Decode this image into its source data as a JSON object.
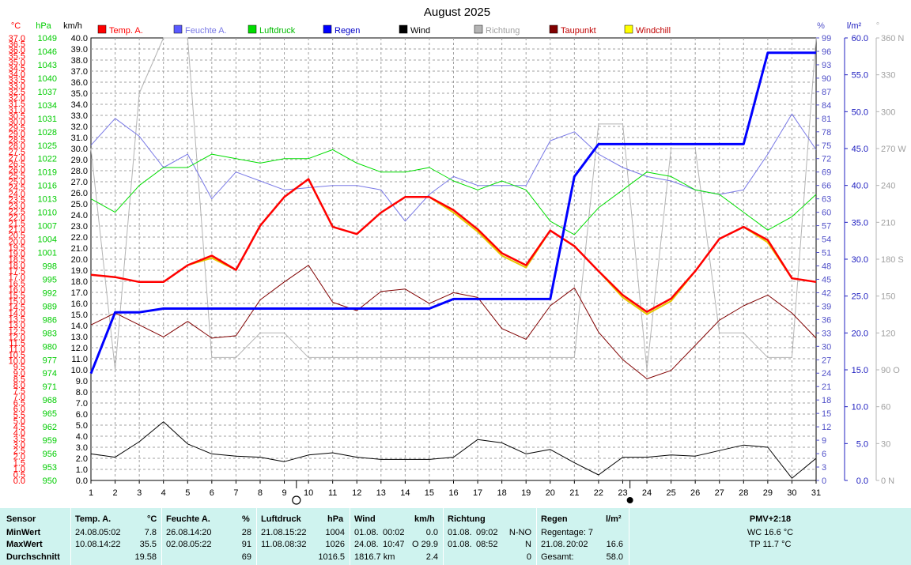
{
  "chart_data": {
    "type": "line",
    "title": "August 2025",
    "x": [
      1,
      2,
      3,
      4,
      5,
      6,
      7,
      8,
      9,
      10,
      11,
      12,
      13,
      14,
      15,
      16,
      17,
      18,
      19,
      20,
      21,
      22,
      23,
      24,
      25,
      26,
      27,
      28,
      29,
      30,
      31
    ],
    "moon_new_day": 9.5,
    "moon_full_day": 23.3,
    "grid": true,
    "legend_position": "top",
    "axes": {
      "temp": {
        "unit": "°C",
        "color": "#ff0000",
        "range": [
          0,
          37
        ],
        "step": 0.5
      },
      "pressure": {
        "unit": "hPa",
        "color": "#00cc00",
        "range": [
          950,
          1049
        ],
        "step": 3
      },
      "wind": {
        "unit": "km/h",
        "color": "#000000",
        "range": [
          0,
          40
        ],
        "step": 1
      },
      "humidity": {
        "unit": "%",
        "color": "#5050c8",
        "range": [
          0,
          99
        ],
        "step": 3
      },
      "rain": {
        "unit": "l/m²",
        "color": "#2020c0",
        "range": [
          0,
          60
        ],
        "step": 5
      },
      "direction": {
        "unit": "°",
        "color": "#b4b4b4",
        "range": [
          0,
          360
        ],
        "step": 30
      }
    },
    "direction_labels": [
      "0 N",
      "30",
      "60",
      "90 O",
      "120",
      "150",
      "180 S",
      "210",
      "240",
      "270 W",
      "300",
      "330",
      "360 N"
    ],
    "series": [
      {
        "name": "Temp. A.",
        "axis": "temp",
        "color": "#ff0000",
        "width": 2.5,
        "values": [
          17.2,
          17.0,
          16.6,
          16.6,
          18.0,
          18.8,
          17.6,
          21.3,
          23.7,
          25.2,
          21.2,
          20.6,
          22.4,
          23.7,
          23.7,
          22.6,
          21.0,
          19.0,
          18.0,
          20.9,
          19.6,
          17.5,
          15.5,
          14.1,
          15.2,
          17.5,
          20.2,
          21.2,
          20.1,
          16.9,
          16.6
        ]
      },
      {
        "name": "Windchill",
        "axis": "temp",
        "color": "#e6c800",
        "width": 2,
        "values": [
          17.2,
          17.0,
          16.6,
          16.6,
          18.0,
          18.6,
          17.6,
          21.3,
          23.7,
          25.2,
          21.2,
          20.6,
          22.4,
          23.7,
          23.7,
          22.4,
          20.8,
          18.8,
          17.8,
          20.9,
          19.6,
          17.5,
          15.3,
          13.9,
          15.0,
          17.5,
          20.2,
          21.2,
          19.9,
          16.9,
          16.6
        ]
      },
      {
        "name": "Feuchte A.",
        "axis": "humidity",
        "color": "#7878e6",
        "width": 1,
        "values": [
          75,
          81,
          77,
          70,
          73,
          63,
          69,
          67,
          65,
          65.5,
          66,
          66,
          65,
          58,
          64,
          68,
          66,
          66,
          66,
          76,
          78,
          73,
          70,
          68,
          67,
          65,
          64,
          65,
          73,
          82,
          74
        ]
      },
      {
        "name": "Luftdruck",
        "axis": "pressure",
        "color": "#00dd00",
        "width": 1,
        "values": [
          1013,
          1010,
          1016,
          1020,
          1020,
          1023,
          1022,
          1021,
          1022,
          1022,
          1024,
          1021,
          1019,
          1019,
          1020,
          1017,
          1015,
          1017,
          1015,
          1008,
          1005,
          1011,
          1015,
          1019,
          1018,
          1015,
          1014,
          1010,
          1006,
          1009,
          1014
        ]
      },
      {
        "name": "Regen",
        "axis": "rain",
        "color": "#0000ff",
        "width": 3,
        "step_after": true,
        "values": [
          14.5,
          22.8,
          22.8,
          23.3,
          23.3,
          23.3,
          23.3,
          23.3,
          23.3,
          23.3,
          23.3,
          23.3,
          23.3,
          23.3,
          23.3,
          24.6,
          24.6,
          24.6,
          24.6,
          24.6,
          41.2,
          45.6,
          45.6,
          45.6,
          45.6,
          45.6,
          45.6,
          45.6,
          58.0,
          58.0,
          58.0
        ]
      },
      {
        "name": "Wind",
        "axis": "wind",
        "color": "#000000",
        "width": 1,
        "values": [
          2.4,
          2.1,
          3.5,
          5.3,
          3.3,
          2.4,
          2.2,
          2.1,
          1.7,
          2.3,
          2.5,
          2.1,
          1.9,
          1.9,
          1.9,
          2.1,
          3.7,
          3.4,
          2.4,
          2.8,
          1.6,
          0.5,
          2.1,
          2.1,
          2.3,
          2.2,
          2.7,
          3.2,
          3.0,
          0.2,
          2.0
        ]
      },
      {
        "name": "Richtung",
        "axis": "direction",
        "color": "#b4b4b4",
        "width": 1,
        "values": [
          270,
          90,
          315,
          360,
          360,
          100,
          100,
          120,
          120,
          100,
          100,
          100,
          100,
          100,
          100,
          100,
          100,
          100,
          100,
          100,
          100,
          290,
          290,
          90,
          270,
          270,
          120,
          120,
          100,
          100,
          360
        ]
      },
      {
        "name": "Taupunkt",
        "axis": "temp",
        "color": "#800000",
        "width": 1,
        "values": [
          13.0,
          14.0,
          13.0,
          12.0,
          13.3,
          11.9,
          12.1,
          15.1,
          16.6,
          18.0,
          14.9,
          14.2,
          15.8,
          16.0,
          14.8,
          15.7,
          15.3,
          12.7,
          11.8,
          14.6,
          16.1,
          12.4,
          10.1,
          8.5,
          9.2,
          11.3,
          13.4,
          14.6,
          15.5,
          14.0,
          11.9
        ]
      }
    ],
    "legend": [
      {
        "name": "Temp. A.",
        "swatch": "#ff0000",
        "text_color": "#ff0000"
      },
      {
        "name": "Feuchte A.",
        "swatch": "#5a5aff",
        "text_color": "#7878e6"
      },
      {
        "name": "Luftdruck",
        "swatch": "#00dd00",
        "text_color": "#00bb00"
      },
      {
        "name": "Regen",
        "swatch": "#0000ff",
        "text_color": "#0000c8"
      },
      {
        "name": "Wind",
        "swatch": "#000000",
        "text_color": "#000000"
      },
      {
        "name": "Richtung",
        "swatch": "#b4b4b4",
        "text_color": "#a0a0a0"
      },
      {
        "name": "Taupunkt",
        "swatch": "#800000",
        "text_color": "#c00000"
      },
      {
        "name": "Windchill",
        "swatch": "#ffff00",
        "text_color": "#c00000"
      }
    ]
  },
  "stats": {
    "sensor": {
      "header": "Sensor",
      "min": "MinWert",
      "max": "MaxWert",
      "avg": "Durchschnitt"
    },
    "temp": {
      "header": "Temp. A.",
      "unit": "°C",
      "min_date": "24.08.",
      "min_time": "05:02",
      "min_val": "7.8",
      "max_date": "10.08.",
      "max_time": "14:22",
      "max_val": "35.5",
      "avg_val": "19.58"
    },
    "humidity": {
      "header": "Feuchte A.",
      "unit": "%",
      "min_date": "26.08.",
      "min_time": "14:20",
      "min_val": "28",
      "max_date": "02.08.",
      "max_time": "05:22",
      "max_val": "91",
      "avg_val": "69"
    },
    "pressure": {
      "header": "Luftdruck",
      "unit": "hPa",
      "min_date": "21.08.",
      "min_time": "15:22",
      "min_val": "1004",
      "max_date": "11.08.",
      "max_time": "08:32",
      "max_val": "1026",
      "avg_val": "1016.5"
    },
    "wind": {
      "header": "Wind",
      "unit": "km/h",
      "min_date": "01.08.",
      "min_time": "00:02",
      "min_val": "0.0",
      "max_date": "24.08.",
      "max_time": "10:47",
      "max_val": "O 29.9",
      "avg_left": "1816.7 km",
      "avg_val": "2.4"
    },
    "direction": {
      "header": "Richtung",
      "min_date": "01.08.",
      "min_time": "09:02",
      "min_val": "N-NO",
      "max_date": "01.08.",
      "max_time": "08:52",
      "max_val": "N",
      "avg_val": "0"
    },
    "rain": {
      "header": "Regen",
      "unit": "l/m²",
      "row1": "Regentage: 7",
      "row2_date": "21.08.",
      "row2_time": "20:02",
      "row2_val": "16.6",
      "row3_label": "Gesamt:",
      "row3_val": "58.0"
    },
    "pmv": {
      "line1": "PMV+2:18",
      "line2": "WC 16.6 °C",
      "line3": "TP 11.7 °C"
    }
  }
}
